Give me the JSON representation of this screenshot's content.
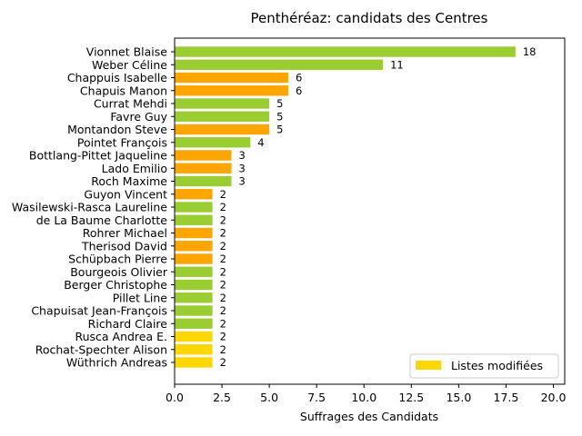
{
  "chart_data": {
    "type": "bar",
    "orientation": "horizontal",
    "title": "Penthéréaz: candidats des Centres",
    "xlabel": "Suffrages des Candidats",
    "ylabel": "",
    "xlim": [
      0,
      20.6
    ],
    "xticks": [
      "0.0",
      "2.5",
      "5.0",
      "7.5",
      "10.0",
      "12.5",
      "15.0",
      "17.5",
      "20.0"
    ],
    "xtick_values": [
      0,
      2.5,
      5,
      7.5,
      10,
      12.5,
      15,
      17.5,
      20
    ],
    "grid": false,
    "legend": {
      "placement": "lower-right",
      "entries": [
        {
          "label": "Listes modifiées",
          "color": "#ffd700"
        }
      ]
    },
    "colors": {
      "green": "#9acd32",
      "orange": "#ffa500",
      "gold": "#ffd700"
    },
    "bars": [
      {
        "label": "Vionnet Blaise",
        "value": 18,
        "color": "green"
      },
      {
        "label": "Weber Céline",
        "value": 11,
        "color": "green"
      },
      {
        "label": "Chappuis Isabelle",
        "value": 6,
        "color": "orange"
      },
      {
        "label": "Chapuis Manon",
        "value": 6,
        "color": "orange"
      },
      {
        "label": "Currat Mehdi",
        "value": 5,
        "color": "green"
      },
      {
        "label": "Favre Guy",
        "value": 5,
        "color": "green"
      },
      {
        "label": "Montandon Steve",
        "value": 5,
        "color": "orange"
      },
      {
        "label": "Pointet François",
        "value": 4,
        "color": "green"
      },
      {
        "label": "Bottlang-Pittet Jaqueline",
        "value": 3,
        "color": "orange"
      },
      {
        "label": "Lado Emilio",
        "value": 3,
        "color": "orange"
      },
      {
        "label": "Roch Maxime",
        "value": 3,
        "color": "green"
      },
      {
        "label": "Guyon Vincent",
        "value": 2,
        "color": "orange"
      },
      {
        "label": "Wasilewski-Rasca Laureline",
        "value": 2,
        "color": "green"
      },
      {
        "label": "de La Baume Charlotte",
        "value": 2,
        "color": "green"
      },
      {
        "label": "Rohrer Michael",
        "value": 2,
        "color": "orange"
      },
      {
        "label": "Therisod David",
        "value": 2,
        "color": "orange"
      },
      {
        "label": "Schüpbach Pierre",
        "value": 2,
        "color": "orange"
      },
      {
        "label": "Bourgeois Olivier",
        "value": 2,
        "color": "green"
      },
      {
        "label": "Berger Christophe",
        "value": 2,
        "color": "green"
      },
      {
        "label": "Pillet Line",
        "value": 2,
        "color": "green"
      },
      {
        "label": "Chapuisat Jean-François",
        "value": 2,
        "color": "green"
      },
      {
        "label": "Richard Claire",
        "value": 2,
        "color": "green"
      },
      {
        "label": "Rusca Andrea E.",
        "value": 2,
        "color": "gold"
      },
      {
        "label": "Rochat-Spechter Alison",
        "value": 2,
        "color": "gold"
      },
      {
        "label": "Wüthrich Andreas",
        "value": 2,
        "color": "gold"
      }
    ]
  }
}
